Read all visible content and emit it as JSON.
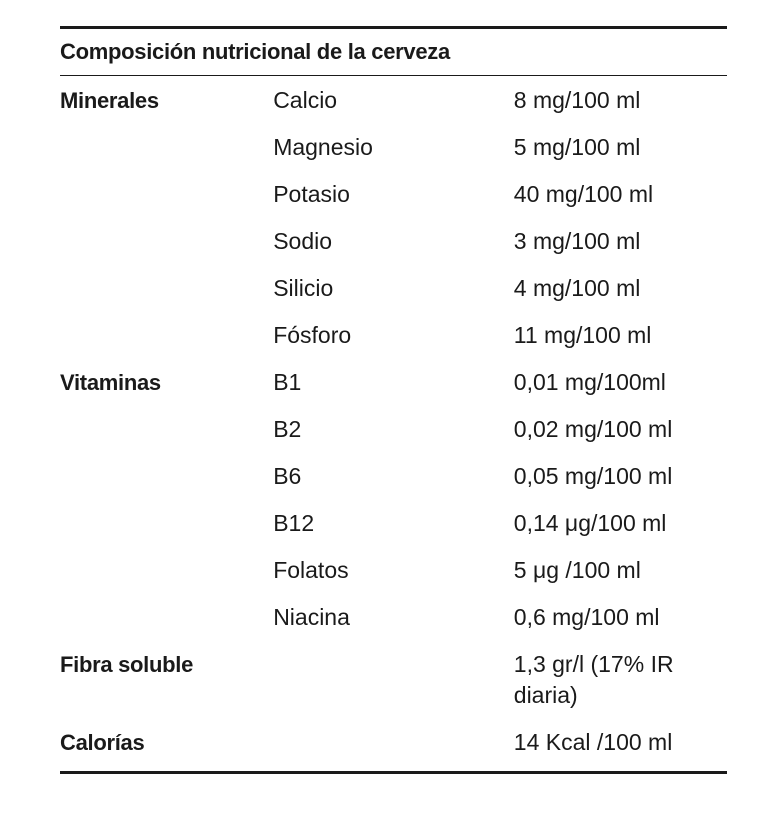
{
  "table": {
    "title": "Composición nutricional de la cerveza",
    "groups": [
      {
        "label": "Minerales",
        "items": [
          {
            "name": "Calcio",
            "value": "8 mg/100 ml"
          },
          {
            "name": "Magnesio",
            "value": "5 mg/100 ml"
          },
          {
            "name": "Potasio",
            "value": "40 mg/100 ml"
          },
          {
            "name": "Sodio",
            "value": "3 mg/100 ml"
          },
          {
            "name": "Silicio",
            "value": "4 mg/100 ml"
          },
          {
            "name": "Fósforo",
            "value": "11 mg/100 ml"
          }
        ]
      },
      {
        "label": "Vitaminas",
        "items": [
          {
            "name": "B1",
            "value": "0,01 mg/100ml"
          },
          {
            "name": "B2",
            "value": "0,02 mg/100 ml"
          },
          {
            "name": "B6",
            "value": "0,05 mg/100 ml"
          },
          {
            "name": "B12",
            "value": "0,14 μg/100 ml"
          },
          {
            "name": "Folatos",
            "value": "5 μg /100 ml"
          },
          {
            "name": "Niacina",
            "value": "0,6 mg/100 ml"
          }
        ]
      },
      {
        "label": "Fibra soluble",
        "value": "1,3 gr/l (17% IR diaria)"
      },
      {
        "label": "Calorías",
        "value": "14 Kcal /100 ml"
      }
    ]
  }
}
